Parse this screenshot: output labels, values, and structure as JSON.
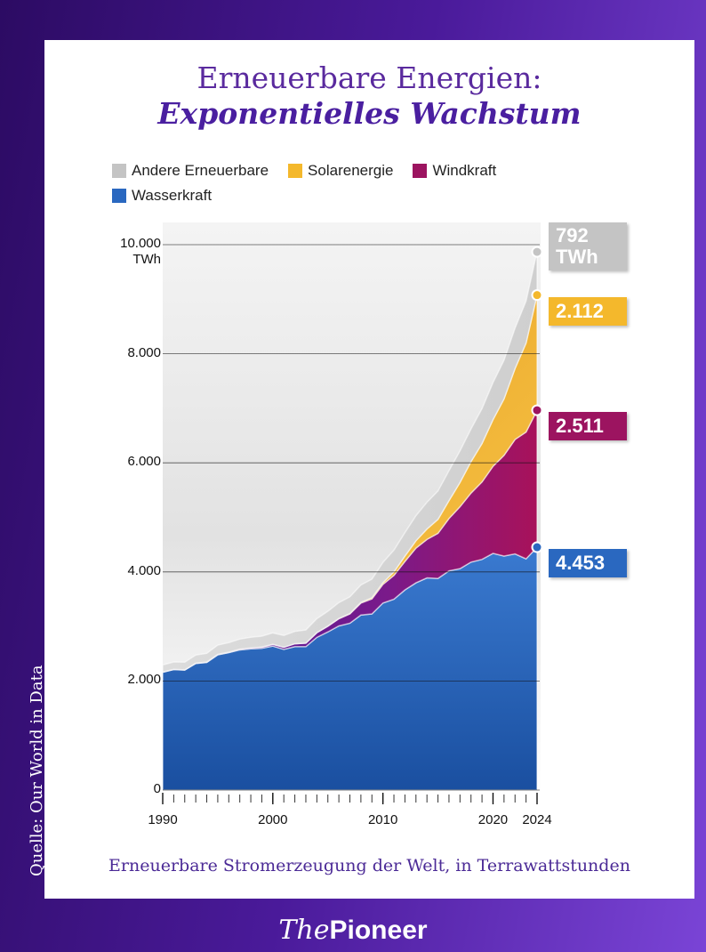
{
  "chart_data": {
    "type": "stacked-area",
    "title": "Erneuerbare Energien:",
    "subtitle": "Exponentielles Wachstum",
    "caption": "Erneuerbare Stromerzeugung der Welt, in Terrawattstunden",
    "source": "Quelle: Our World in Data",
    "x": [
      1990,
      1991,
      1992,
      1993,
      1994,
      1995,
      1996,
      1997,
      1998,
      1999,
      2000,
      2001,
      2002,
      2003,
      2004,
      2005,
      2006,
      2007,
      2008,
      2009,
      2010,
      2011,
      2012,
      2013,
      2014,
      2015,
      2016,
      2017,
      2018,
      2019,
      2020,
      2021,
      2022,
      2023,
      2024
    ],
    "xlim": [
      1990,
      2024
    ],
    "xticks": [
      1990,
      2000,
      2010,
      2020,
      2024
    ],
    "ylim": [
      0,
      10000
    ],
    "yticks": [
      0,
      {
        "value": 2000,
        "label": "2.000"
      },
      {
        "value": 4000,
        "label": "4.000"
      },
      {
        "value": 6000,
        "label": "6.000"
      },
      {
        "value": 8000,
        "label": "8.000"
      },
      {
        "value": 10000,
        "label": "10.000\nTWh"
      }
    ],
    "grid": true,
    "series": [
      {
        "name": "Andere Erneuerbare",
        "color": "#c4c4c4",
        "values": [
          130,
          135,
          140,
          150,
          160,
          170,
          175,
          185,
          195,
          200,
          210,
          215,
          225,
          240,
          255,
          270,
          290,
          305,
          320,
          340,
          370,
          400,
          430,
          460,
          490,
          520,
          550,
          580,
          600,
          640,
          680,
          710,
          740,
          770,
          792
        ],
        "value_labels": [
          null,
          null,
          null,
          null,
          null,
          null,
          null,
          null,
          null,
          null,
          null,
          null,
          null,
          null,
          null,
          null,
          null,
          null,
          null,
          null,
          null,
          null,
          null,
          null,
          null,
          null,
          null,
          null,
          null,
          null,
          null,
          null,
          null,
          null,
          "792\nTWh"
        ]
      },
      {
        "name": "Solarenergie",
        "color": "#f4b82c",
        "values": [
          0,
          0,
          0,
          0,
          0,
          0,
          0,
          1,
          1,
          1,
          1,
          1,
          2,
          2,
          3,
          4,
          5,
          8,
          12,
          21,
          32,
          63,
          100,
          135,
          191,
          256,
          328,
          445,
          575,
          704,
          855,
          1034,
          1300,
          1630,
          2112
        ],
        "value_labels": [
          null,
          null,
          null,
          null,
          null,
          null,
          null,
          null,
          null,
          null,
          null,
          null,
          null,
          null,
          null,
          null,
          null,
          null,
          null,
          null,
          null,
          null,
          null,
          null,
          null,
          null,
          null,
          null,
          null,
          null,
          null,
          null,
          null,
          null,
          "2.112"
        ]
      },
      {
        "name": "Windkraft",
        "color": "#9c1460",
        "values": [
          4,
          4,
          5,
          6,
          7,
          8,
          9,
          12,
          16,
          21,
          31,
          38,
          52,
          63,
          85,
          104,
          132,
          170,
          219,
          276,
          342,
          437,
          522,
          636,
          706,
          828,
          959,
          1135,
          1266,
          1420,
          1597,
          1848,
          2099,
          2325,
          2511
        ],
        "value_labels": [
          null,
          null,
          null,
          null,
          null,
          null,
          null,
          null,
          null,
          null,
          null,
          null,
          null,
          null,
          null,
          null,
          null,
          null,
          null,
          null,
          null,
          null,
          null,
          null,
          null,
          null,
          null,
          null,
          null,
          null,
          null,
          null,
          null,
          null,
          "2.511"
        ]
      },
      {
        "name": "Wasserkraft",
        "color": "#2a68c0",
        "values": [
          2160,
          2210,
          2200,
          2320,
          2340,
          2480,
          2520,
          2570,
          2590,
          2600,
          2640,
          2580,
          2630,
          2630,
          2800,
          2900,
          3010,
          3060,
          3210,
          3230,
          3430,
          3500,
          3670,
          3800,
          3890,
          3880,
          4020,
          4060,
          4180,
          4230,
          4340,
          4290,
          4330,
          4240,
          4453
        ],
        "value_labels": [
          null,
          null,
          null,
          null,
          null,
          null,
          null,
          null,
          null,
          null,
          null,
          null,
          null,
          null,
          null,
          null,
          null,
          null,
          null,
          null,
          null,
          null,
          null,
          null,
          null,
          null,
          null,
          null,
          null,
          null,
          null,
          null,
          null,
          null,
          "4.453"
        ]
      }
    ]
  },
  "footer": {
    "brand_prefix": "The",
    "brand_name": "Pioneer"
  }
}
